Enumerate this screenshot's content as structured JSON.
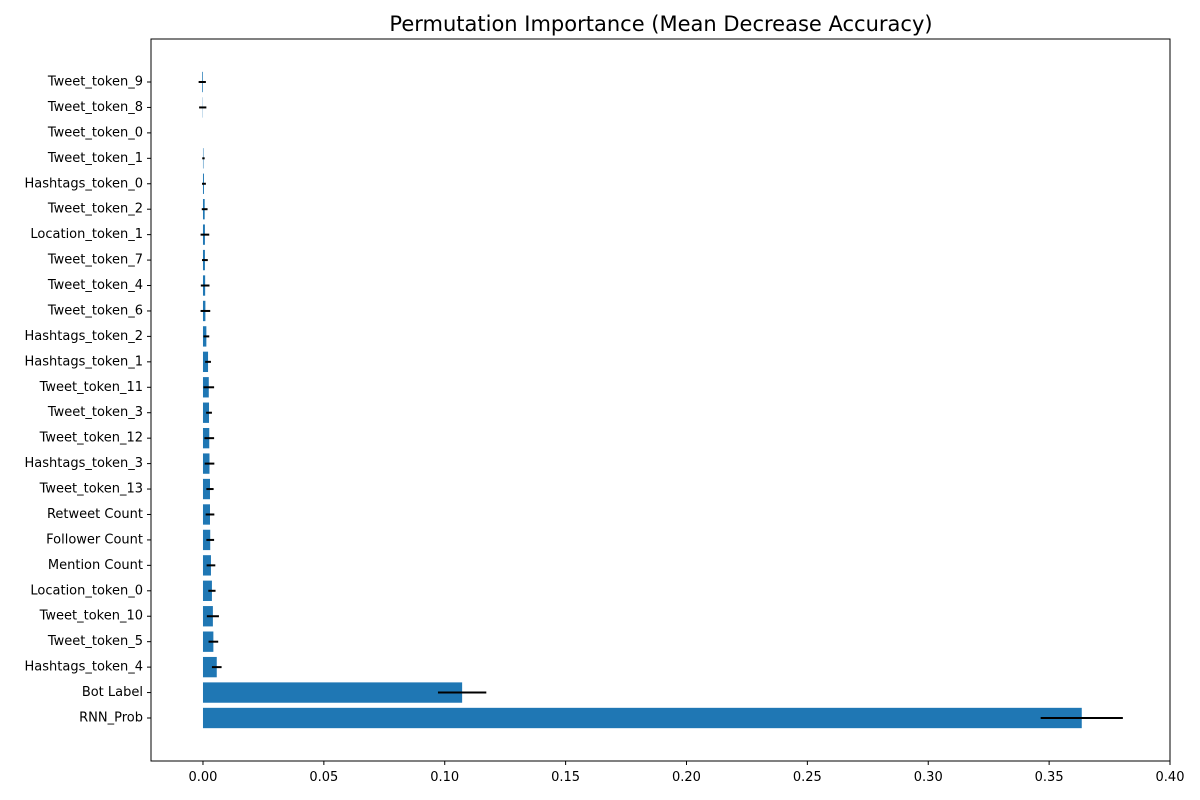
{
  "chart_data": {
    "type": "bar",
    "orientation": "horizontal",
    "title": "Permutation Importance (Mean Decrease Accuracy)",
    "xlabel": "",
    "ylabel": "",
    "xlim": [
      -0.0215,
      0.4
    ],
    "x_ticks": [
      0.0,
      0.05,
      0.1,
      0.15,
      0.2,
      0.25,
      0.3,
      0.35,
      0.4
    ],
    "x_tick_labels": [
      "0.00",
      "0.05",
      "0.10",
      "0.15",
      "0.20",
      "0.25",
      "0.30",
      "0.35",
      "0.40"
    ],
    "grid": false,
    "bar_color": "#1f77b4",
    "error_color": "#000000",
    "categories": [
      "RNN_Prob",
      "Bot Label",
      "Hashtags_token_4",
      "Tweet_token_5",
      "Tweet_token_10",
      "Location_token_0",
      "Mention Count",
      "Follower Count",
      "Retweet Count",
      "Tweet_token_13",
      "Hashtags_token_3",
      "Tweet_token_12",
      "Tweet_token_3",
      "Tweet_token_11",
      "Hashtags_token_1",
      "Hashtags_token_2",
      "Tweet_token_6",
      "Tweet_token_4",
      "Tweet_token_7",
      "Location_token_1",
      "Tweet_token_2",
      "Hashtags_token_0",
      "Tweet_token_1",
      "Tweet_token_0",
      "Tweet_token_8",
      "Tweet_token_9"
    ],
    "values": [
      0.3635,
      0.1072,
      0.0057,
      0.0043,
      0.0041,
      0.0037,
      0.0033,
      0.003,
      0.0029,
      0.0029,
      0.0027,
      0.0026,
      0.0025,
      0.0024,
      0.0021,
      0.0014,
      0.001,
      0.0009,
      0.0008,
      0.0008,
      0.0007,
      0.0004,
      0.0002,
      0.0,
      -0.0001,
      -0.0003
    ],
    "errors": [
      0.017,
      0.01,
      0.002,
      0.002,
      0.0025,
      0.0015,
      0.0018,
      0.0016,
      0.0018,
      0.0015,
      0.002,
      0.002,
      0.0012,
      0.0022,
      0.0012,
      0.0012,
      0.002,
      0.0018,
      0.0012,
      0.0018,
      0.0012,
      0.0008,
      0.0005,
      0.0,
      0.0015,
      0.0015
    ]
  }
}
